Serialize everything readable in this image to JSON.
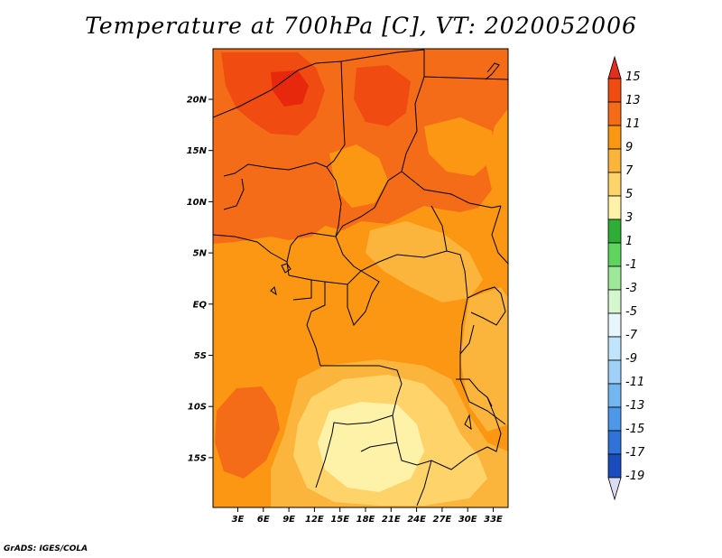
{
  "title": "Temperature at 700hPa [C], VT: 2020052006",
  "footer": "GrADS: IGES/COLA",
  "map": {
    "lat_labels": [
      "20N",
      "15N",
      "10N",
      "5N",
      "EQ",
      "5S",
      "10S",
      "15S"
    ],
    "lon_labels": [
      "3E",
      "6E",
      "9E",
      "12E",
      "15E",
      "18E",
      "21E",
      "24E",
      "27E",
      "30E",
      "33E"
    ]
  },
  "colorbar": {
    "levels": [
      "15",
      "13",
      "11",
      "9",
      "7",
      "5",
      "3",
      "1",
      "-1",
      "-3",
      "-5",
      "-7",
      "-9",
      "-11",
      "-13",
      "-15",
      "-17",
      "-19"
    ],
    "colors": [
      "#e8280c",
      "#f04b10",
      "#f56c18",
      "#fb9712",
      "#fbb43c",
      "#fdd36a",
      "#fef2a8",
      "#2fae35",
      "#5fd45f",
      "#9ee89a",
      "#d6f6d0",
      "#e7f6fb",
      "#bfe4fb",
      "#9fd0f7",
      "#74b7f0",
      "#4b99e8",
      "#2f73d8",
      "#1a4cbd",
      "#0a2a9a",
      "#050a6e"
    ],
    "top_arrow_color": "#e0301c",
    "bottom_arrow_color": "#dcdcf5"
  }
}
